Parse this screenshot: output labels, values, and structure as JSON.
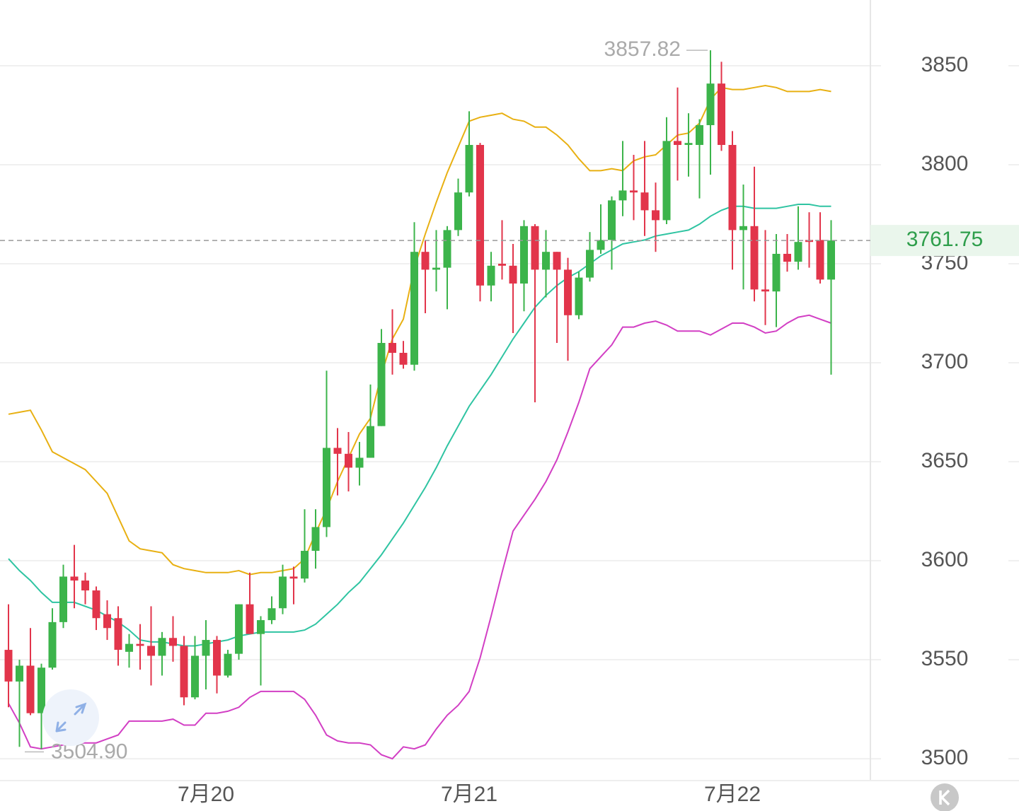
{
  "chart_data": {
    "type": "candlestick",
    "categories": [
      null,
      null,
      null,
      null,
      null,
      null,
      null,
      null,
      null,
      null,
      null,
      null,
      null,
      null,
      null,
      null,
      null,
      null,
      "7月20",
      null,
      null,
      null,
      null,
      null,
      null,
      null,
      null,
      null,
      null,
      null,
      null,
      null,
      null,
      null,
      null,
      null,
      null,
      null,
      null,
      null,
      null,
      null,
      "7月21",
      null,
      null,
      null,
      null,
      null,
      null,
      null,
      null,
      null,
      null,
      null,
      null,
      null,
      null,
      null,
      null,
      null,
      null,
      null,
      null,
      null,
      null,
      null,
      "7月22",
      null,
      null,
      null,
      null,
      null,
      null,
      null,
      null,
      null
    ],
    "open": [
      3555,
      3539,
      3547,
      3523,
      3546,
      3569,
      3592,
      3590,
      3585,
      3573,
      3571,
      3554,
      3558,
      3557,
      3552,
      3561,
      3557,
      3531,
      3552,
      3560,
      3542,
      3553,
      3578,
      3563,
      3570,
      3576,
      3592,
      3591,
      3605,
      3617,
      3657,
      3654,
      3647,
      3652,
      3668,
      3710,
      3705,
      3699,
      3756,
      3747,
      3748,
      3767,
      3786,
      3810,
      3739,
      3750,
      3749,
      3740,
      3769,
      3747,
      3756,
      3747,
      3724,
      3743,
      3757,
      3762,
      3782,
      3787,
      3786,
      3777,
      3772,
      3812,
      3810,
      3810,
      3820,
      3841,
      3810,
      3767,
      3769,
      3737,
      3736,
      3755,
      3751,
      3762,
      3762,
      3742
    ],
    "high": [
      3578,
      3550,
      3566,
      3548,
      3576,
      3598,
      3608,
      3594,
      3587,
      3580,
      3577,
      3563,
      3568,
      3577,
      3564,
      3572,
      3562,
      3562,
      3570,
      3562,
      3555,
      3578,
      3594,
      3572,
      3582,
      3598,
      3597,
      3626,
      3626,
      3696,
      3667,
      3665,
      3660,
      3689,
      3717,
      3727,
      3711,
      3771,
      3762,
      3767,
      3769,
      3793,
      3827,
      3811,
      3756,
      3772,
      3760,
      3772,
      3770,
      3767,
      3756,
      3753,
      3746,
      3766,
      3780,
      3784,
      3812,
      3805,
      3812,
      3791,
      3824,
      3839,
      3826,
      3823,
      3857.82,
      3852,
      3817,
      3790,
      3799,
      3767,
      3765,
      3765,
      3779,
      3776,
      3776,
      3772
    ],
    "low": [
      3526,
      3506,
      3522,
      3504.9,
      3545,
      3566,
      3576,
      3578,
      3565,
      3560,
      3547,
      3546,
      3545,
      3537,
      3542,
      3549,
      3527,
      3530,
      3535,
      3533,
      3541,
      3550,
      3563,
      3537,
      3568,
      3573,
      3578,
      3589,
      3596,
      3612,
      3633,
      3635,
      3638,
      3652,
      3668,
      3694,
      3697,
      3696,
      3725,
      3736,
      3727,
      3764,
      3784,
      3731,
      3731,
      3742,
      3715,
      3726,
      3680,
      3733,
      3710,
      3701,
      3722,
      3741,
      3755,
      3747,
      3774,
      3772,
      3764,
      3756,
      3770,
      3792,
      3794,
      3783,
      3795,
      3807,
      3747,
      3737,
      3731,
      3719,
      3718,
      3746,
      3747,
      3748,
      3740,
      3694
    ],
    "close": [
      3539,
      3547,
      3523,
      3546,
      3569,
      3592,
      3590,
      3585,
      3571,
      3566,
      3555,
      3558,
      3557,
      3552,
      3561,
      3557,
      3531,
      3552,
      3560,
      3542,
      3553,
      3578,
      3563,
      3570,
      3576,
      3592,
      3591,
      3605,
      3617,
      3657,
      3654,
      3647,
      3652,
      3668,
      3710,
      3705,
      3699,
      3756,
      3747,
      3748,
      3767,
      3786,
      3810,
      3739,
      3749,
      3749,
      3740,
      3769,
      3747,
      3756,
      3747,
      3724,
      3743,
      3757,
      3762,
      3782,
      3787,
      3786,
      3777,
      3772,
      3812,
      3810,
      3811,
      3820,
      3841,
      3810,
      3767,
      3769,
      3737,
      3736,
      3755,
      3751,
      3761,
      3761,
      3742,
      3761.75
    ],
    "up_color": "#3cb44b",
    "down_color": "#e2354b",
    "bands": [
      {
        "color": "#e8b012",
        "values": [
          3674,
          3675,
          3676,
          3666,
          3655,
          3652,
          3649,
          3646,
          3640,
          3634,
          3622,
          3610,
          3606,
          3605,
          3604,
          3598,
          3596,
          3595,
          3594,
          3594,
          3594,
          3595,
          3593,
          3594,
          3594,
          3595,
          3596,
          3601,
          3614,
          3626,
          3640,
          3652,
          3664,
          3672,
          3694,
          3712,
          3722,
          3748,
          3765,
          3781,
          3796,
          3809,
          3822,
          3824,
          3825,
          3826,
          3823,
          3822,
          3819,
          3819,
          3815,
          3810,
          3803,
          3797,
          3797,
          3798,
          3797,
          3802,
          3804,
          3805,
          3810,
          3815,
          3816,
          3821,
          3833,
          3839,
          3838,
          3838,
          3839,
          3840,
          3839,
          3837,
          3837,
          3837,
          3838,
          3837
        ]
      },
      {
        "color": "#2fc4a2",
        "values": [
          3601,
          3595,
          3590,
          3584,
          3579,
          3579,
          3579,
          3577,
          3575,
          3572,
          3569,
          3565,
          3560,
          3559,
          3559,
          3558,
          3557,
          3557,
          3558,
          3559,
          3560,
          3562,
          3563,
          3564,
          3564,
          3564,
          3564,
          3565,
          3568,
          3573,
          3578,
          3584,
          3589,
          3596,
          3603,
          3611,
          3619,
          3628,
          3637,
          3647,
          3658,
          3668,
          3678,
          3686,
          3694,
          3703,
          3712,
          3720,
          3728,
          3734,
          3739,
          3743,
          3746,
          3750,
          3754,
          3757,
          3760,
          3761,
          3762,
          3764,
          3765,
          3766,
          3767,
          3770,
          3774,
          3777,
          3779,
          3779,
          3778,
          3778,
          3778,
          3779,
          3780,
          3780,
          3779,
          3779
        ]
      },
      {
        "color": "#d23fc4",
        "values": [
          3528,
          3518,
          3506,
          3505,
          3506,
          3507,
          3508,
          3508,
          3508,
          3510,
          3512,
          3519,
          3519,
          3519,
          3519,
          3520,
          3517,
          3517,
          3523,
          3523,
          3524,
          3526,
          3531,
          3534,
          3534,
          3534,
          3534,
          3530,
          3522,
          3512,
          3509,
          3508,
          3508,
          3507,
          3502,
          3500,
          3506,
          3505,
          3507,
          3515,
          3522,
          3527,
          3534,
          3551,
          3572,
          3594,
          3615,
          3623,
          3631,
          3640,
          3651,
          3665,
          3680,
          3697,
          3703,
          3709,
          3718,
          3718,
          3720,
          3721,
          3719,
          3716,
          3716,
          3716,
          3714,
          3717,
          3720,
          3720,
          3718,
          3715,
          3716,
          3720,
          3723,
          3724,
          3722,
          3720
        ]
      }
    ],
    "ylim": [
      3488.6,
      3883.2
    ],
    "yticks": [
      3500,
      3550,
      3600,
      3650,
      3700,
      3750,
      3800,
      3850
    ],
    "grid": true,
    "max_label": 3857.82,
    "min_label": {
      "value": 3504.9,
      "label": "3504.90"
    },
    "last_price": 3761.75,
    "last_price_color": "#2e9e4b"
  }
}
